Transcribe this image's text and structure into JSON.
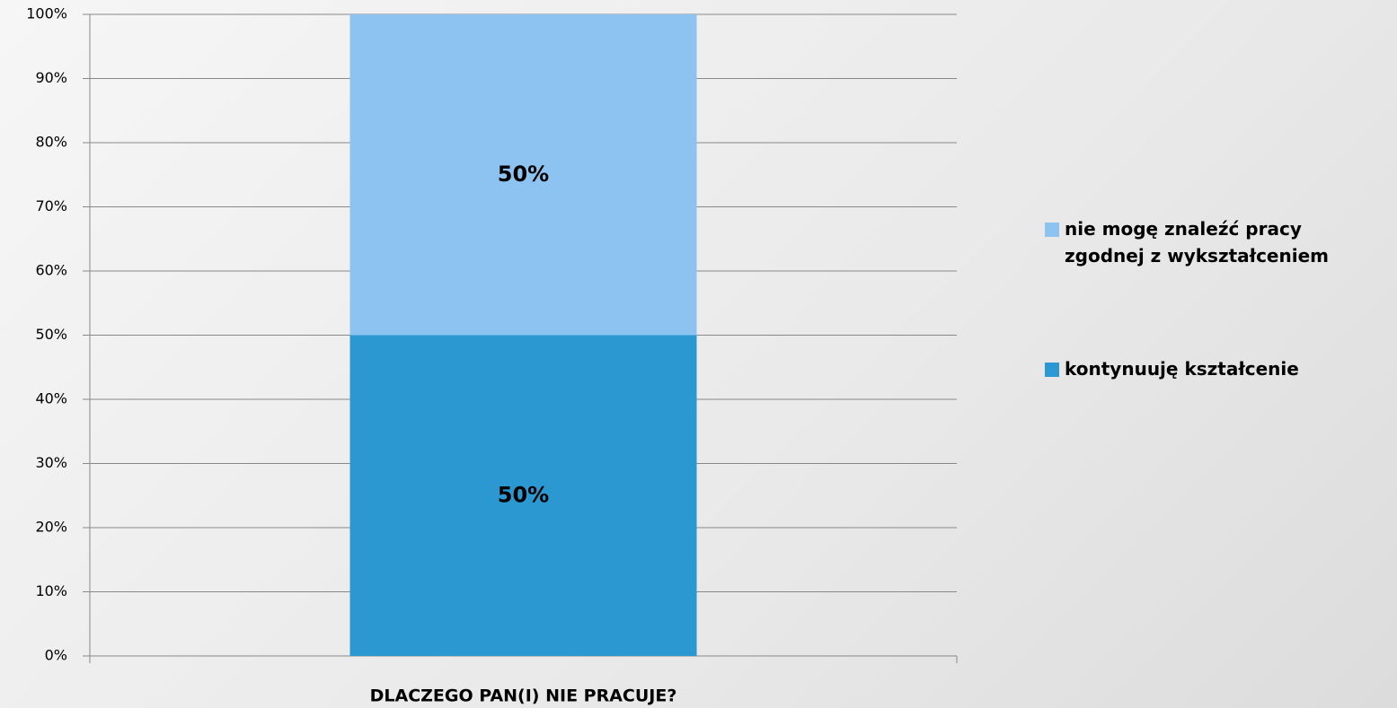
{
  "chart_data": {
    "type": "stacked_bar",
    "categories": [
      "DLACZEGO PAN(I) NIE PRACUJE?"
    ],
    "series": [
      {
        "name": "kontynuuję kształcenie",
        "color": "#2b98d2",
        "values": [
          50
        ],
        "value_labels": [
          "50%"
        ]
      },
      {
        "name": "nie mogę znaleźć pracy zgodnej z wykształceniem",
        "color": "#8dc3f0",
        "values": [
          50
        ],
        "value_labels": [
          "50%"
        ]
      }
    ],
    "ylim": [
      0,
      100
    ],
    "yticks": [
      {
        "value": 0,
        "label": "0%"
      },
      {
        "value": 10,
        "label": "10%"
      },
      {
        "value": 20,
        "label": "20%"
      },
      {
        "value": 30,
        "label": "30%"
      },
      {
        "value": 40,
        "label": "40%"
      },
      {
        "value": 50,
        "label": "50%"
      },
      {
        "value": 60,
        "label": "60%"
      },
      {
        "value": 70,
        "label": "70%"
      },
      {
        "value": 80,
        "label": "80%"
      },
      {
        "value": 90,
        "label": "90%"
      },
      {
        "value": 100,
        "label": "100%"
      }
    ],
    "grid": true,
    "legend": "right"
  }
}
